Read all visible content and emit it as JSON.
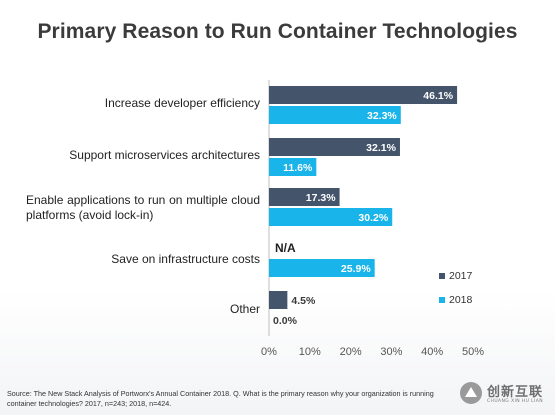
{
  "colors": {
    "s2017": "#44546a",
    "s2018": "#18b4ea",
    "axis": "#bfbfbf",
    "text": "#222222"
  },
  "chart_data": {
    "type": "bar",
    "orientation": "horizontal",
    "title": "Primary Reason to Run Container Technologies",
    "categories": [
      "Increase developer efficiency",
      "Support microservices architectures",
      "Enable applications to run on multiple cloud platforms (avoid lock-in)",
      "Save on infrastructure costs",
      "Other"
    ],
    "series": [
      {
        "name": "2017",
        "values": [
          46.1,
          32.1,
          17.3,
          null,
          4.5
        ],
        "labels": [
          "46.1%",
          "32.1%",
          "17.3%",
          "N/A",
          "4.5%"
        ]
      },
      {
        "name": "2018",
        "values": [
          32.3,
          11.6,
          30.2,
          25.9,
          0.0
        ],
        "labels": [
          "32.3%",
          "11.6%",
          "30.2%",
          "25.9%",
          "0.0%"
        ]
      }
    ],
    "xlim": [
      0,
      50
    ],
    "x_ticks": [
      "0%",
      "10%",
      "20%",
      "30%",
      "40%",
      "50%"
    ],
    "legend_position": "right",
    "grid": false
  },
  "source": "Source: The New Stack Analysis of Portworx's Annual Container 2018. Q. What is the primary reason why your organization is running container technologies? 2017, n=243; 2018, n=424.",
  "watermark": {
    "text": "创新互联",
    "subtext": "CHUANG XIN HU LIAN"
  }
}
